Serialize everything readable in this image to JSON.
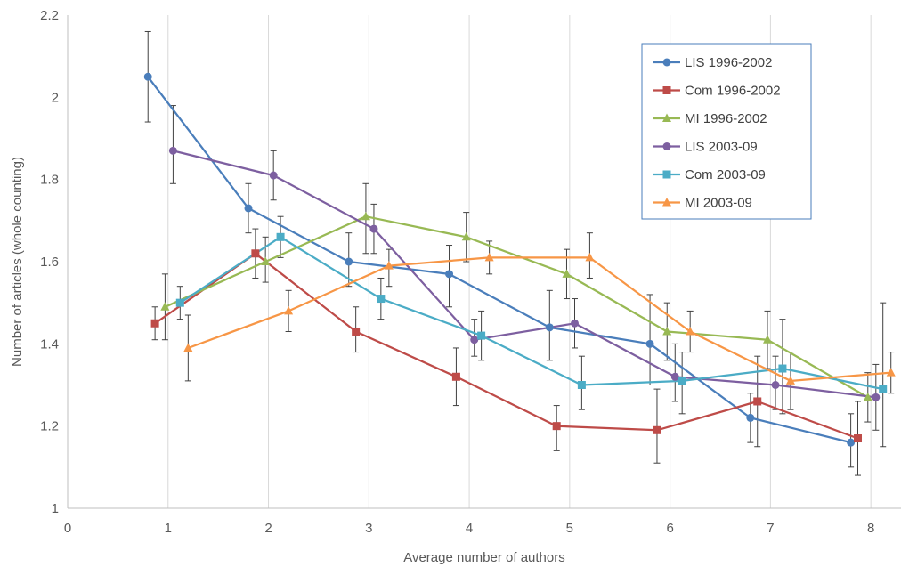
{
  "chart_data": {
    "type": "line",
    "title": "",
    "xlabel": "Average number of authors",
    "ylabel": "Number of articles (whole counting)",
    "xlim": [
      0,
      8.3
    ],
    "ylim": [
      1,
      2.2
    ],
    "xticks": [
      "0",
      "1",
      "2",
      "3",
      "4",
      "5",
      "6",
      "7",
      "8"
    ],
    "yticks": [
      "1",
      "1.2",
      "1.4",
      "1.6",
      "1.8",
      "2",
      "2.2"
    ],
    "grid": "vertical",
    "legend_position": "top-right",
    "series": [
      {
        "name": "LIS 1996-2002",
        "color": "#4a7ebb",
        "marker": "circle",
        "points": [
          {
            "x": 0.8,
            "y": 2.05,
            "lo": 1.94,
            "hi": 2.16
          },
          {
            "x": 1.8,
            "y": 1.73,
            "lo": 1.67,
            "hi": 1.79
          },
          {
            "x": 2.8,
            "y": 1.6,
            "lo": 1.54,
            "hi": 1.67
          },
          {
            "x": 3.8,
            "y": 1.57,
            "lo": 1.49,
            "hi": 1.64
          },
          {
            "x": 4.8,
            "y": 1.44,
            "lo": 1.36,
            "hi": 1.53
          },
          {
            "x": 5.8,
            "y": 1.4,
            "lo": 1.3,
            "hi": 1.52
          },
          {
            "x": 6.8,
            "y": 1.22,
            "lo": 1.16,
            "hi": 1.28
          },
          {
            "x": 7.8,
            "y": 1.16,
            "lo": 1.1,
            "hi": 1.23
          }
        ]
      },
      {
        "name": "Com 1996-2002",
        "color": "#be4b48",
        "marker": "square",
        "points": [
          {
            "x": 0.87,
            "y": 1.45,
            "lo": 1.41,
            "hi": 1.49
          },
          {
            "x": 1.87,
            "y": 1.62,
            "lo": 1.56,
            "hi": 1.68
          },
          {
            "x": 2.87,
            "y": 1.43,
            "lo": 1.38,
            "hi": 1.49
          },
          {
            "x": 3.87,
            "y": 1.32,
            "lo": 1.25,
            "hi": 1.39
          },
          {
            "x": 4.87,
            "y": 1.2,
            "lo": 1.14,
            "hi": 1.25
          },
          {
            "x": 5.87,
            "y": 1.19,
            "lo": 1.11,
            "hi": 1.29
          },
          {
            "x": 6.87,
            "y": 1.26,
            "lo": 1.15,
            "hi": 1.37
          },
          {
            "x": 7.87,
            "y": 1.17,
            "lo": 1.08,
            "hi": 1.26
          }
        ]
      },
      {
        "name": "MI 1996-2002",
        "color": "#98b954",
        "marker": "triangle",
        "points": [
          {
            "x": 0.97,
            "y": 1.49,
            "lo": 1.41,
            "hi": 1.57
          },
          {
            "x": 1.97,
            "y": 1.6,
            "lo": 1.55,
            "hi": 1.66
          },
          {
            "x": 2.97,
            "y": 1.71,
            "lo": 1.62,
            "hi": 1.79
          },
          {
            "x": 3.97,
            "y": 1.66,
            "lo": 1.6,
            "hi": 1.72
          },
          {
            "x": 4.97,
            "y": 1.57,
            "lo": 1.51,
            "hi": 1.63
          },
          {
            "x": 5.97,
            "y": 1.43,
            "lo": 1.36,
            "hi": 1.5
          },
          {
            "x": 6.97,
            "y": 1.41,
            "lo": 1.34,
            "hi": 1.48
          },
          {
            "x": 7.97,
            "y": 1.27,
            "lo": 1.21,
            "hi": 1.33
          }
        ]
      },
      {
        "name": "LIS 2003-09",
        "color": "#7d5fa0",
        "marker": "circle",
        "points": [
          {
            "x": 1.05,
            "y": 1.87,
            "lo": 1.79,
            "hi": 1.98
          },
          {
            "x": 2.05,
            "y": 1.81,
            "lo": 1.75,
            "hi": 1.87
          },
          {
            "x": 3.05,
            "y": 1.68,
            "lo": 1.62,
            "hi": 1.74
          },
          {
            "x": 4.05,
            "y": 1.41,
            "lo": 1.37,
            "hi": 1.46
          },
          {
            "x": 5.05,
            "y": 1.45,
            "lo": 1.39,
            "hi": 1.51
          },
          {
            "x": 6.05,
            "y": 1.32,
            "lo": 1.26,
            "hi": 1.4
          },
          {
            "x": 7.05,
            "y": 1.3,
            "lo": 1.24,
            "hi": 1.37
          },
          {
            "x": 8.05,
            "y": 1.27,
            "lo": 1.19,
            "hi": 1.35
          }
        ]
      },
      {
        "name": "Com 2003-09",
        "color": "#4bacc6",
        "marker": "square",
        "points": [
          {
            "x": 1.12,
            "y": 1.5,
            "lo": 1.46,
            "hi": 1.54
          },
          {
            "x": 2.12,
            "y": 1.66,
            "lo": 1.61,
            "hi": 1.71
          },
          {
            "x": 3.12,
            "y": 1.51,
            "lo": 1.46,
            "hi": 1.56
          },
          {
            "x": 4.12,
            "y": 1.42,
            "lo": 1.36,
            "hi": 1.48
          },
          {
            "x": 5.12,
            "y": 1.3,
            "lo": 1.24,
            "hi": 1.37
          },
          {
            "x": 6.12,
            "y": 1.31,
            "lo": 1.23,
            "hi": 1.38
          },
          {
            "x": 7.12,
            "y": 1.34,
            "lo": 1.23,
            "hi": 1.46
          },
          {
            "x": 8.12,
            "y": 1.29,
            "lo": 1.15,
            "hi": 1.5
          }
        ]
      },
      {
        "name": "MI 2003-09",
        "color": "#f79646",
        "marker": "triangle",
        "points": [
          {
            "x": 1.2,
            "y": 1.39,
            "lo": 1.31,
            "hi": 1.47
          },
          {
            "x": 2.2,
            "y": 1.48,
            "lo": 1.43,
            "hi": 1.53
          },
          {
            "x": 3.2,
            "y": 1.59,
            "lo": 1.54,
            "hi": 1.63
          },
          {
            "x": 4.2,
            "y": 1.61,
            "lo": 1.57,
            "hi": 1.65
          },
          {
            "x": 5.2,
            "y": 1.61,
            "lo": 1.56,
            "hi": 1.67
          },
          {
            "x": 6.2,
            "y": 1.43,
            "lo": 1.38,
            "hi": 1.48
          },
          {
            "x": 7.2,
            "y": 1.31,
            "lo": 1.24,
            "hi": 1.38
          },
          {
            "x": 8.2,
            "y": 1.33,
            "lo": 1.28,
            "hi": 1.38
          }
        ]
      }
    ]
  }
}
